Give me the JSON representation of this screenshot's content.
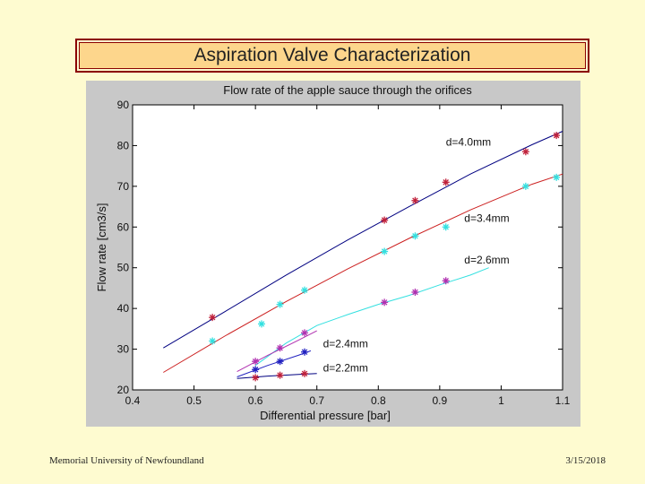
{
  "slide": {
    "title": "Aspiration Valve Characterization",
    "footer_left": "Memorial University of Newfoundland",
    "footer_right": "3/15/2018"
  },
  "chart_data": {
    "type": "scatter",
    "title": "Flow rate of the apple sauce through the orifices",
    "xlabel": "Differential pressure [bar]",
    "ylabel": "Flow rate [cm3/s]",
    "xlim": [
      0.4,
      1.1
    ],
    "ylim": [
      20,
      90
    ],
    "xticks": [
      0.4,
      0.5,
      0.6,
      0.7,
      0.8,
      0.9,
      1,
      1.1
    ],
    "xtick_labels": [
      "0.4",
      "0.5",
      "0.6",
      "0.7",
      "0.8",
      "0.9",
      "1",
      "1.1"
    ],
    "yticks": [
      20,
      30,
      40,
      50,
      60,
      70,
      80,
      90
    ],
    "ytick_labels": [
      "20",
      "30",
      "40",
      "50",
      "60",
      "70",
      "80",
      "90"
    ],
    "grid": false,
    "series": [
      {
        "name": "d=4.0mm",
        "marker_color": "#c0203a",
        "line_color": "#000080",
        "points": [
          [
            0.53,
            37.8
          ],
          [
            0.81,
            61.7
          ],
          [
            0.86,
            66.5
          ],
          [
            0.91,
            71.0
          ],
          [
            1.04,
            78.5
          ],
          [
            1.09,
            82.5
          ]
        ],
        "fit": [
          [
            0.45,
            30.3
          ],
          [
            0.55,
            39.2
          ],
          [
            0.65,
            48.2
          ],
          [
            0.75,
            56.8
          ],
          [
            0.85,
            65.0
          ],
          [
            0.95,
            73.0
          ],
          [
            1.05,
            80.2
          ],
          [
            1.1,
            83.5
          ]
        ]
      },
      {
        "name": "d=3.4mm",
        "marker_color": "#33e0e0",
        "line_color": "#cc2020",
        "points": [
          [
            0.53,
            32.0
          ],
          [
            0.61,
            36.2
          ],
          [
            0.64,
            41.0
          ],
          [
            0.68,
            44.5
          ],
          [
            0.81,
            54.0
          ],
          [
            0.86,
            57.8
          ],
          [
            0.91,
            60.0
          ],
          [
            1.04,
            70.0
          ],
          [
            1.09,
            72.2
          ]
        ],
        "fit": [
          [
            0.45,
            24.3
          ],
          [
            0.55,
            33.2
          ],
          [
            0.65,
            41.7
          ],
          [
            0.75,
            49.7
          ],
          [
            0.85,
            57.2
          ],
          [
            0.95,
            64.2
          ],
          [
            1.05,
            70.5
          ],
          [
            1.1,
            73.0
          ]
        ]
      },
      {
        "name": "d=2.6mm",
        "marker_color": "#b030b0",
        "line_color": "#33e0e0",
        "points": [
          [
            0.81,
            41.5
          ],
          [
            0.86,
            44.0
          ],
          [
            0.91,
            46.8
          ]
        ],
        "fit": [
          [
            0.6,
            26.0
          ],
          [
            0.65,
            31.5
          ],
          [
            0.7,
            35.8
          ],
          [
            0.75,
            38.5
          ],
          [
            0.8,
            41.0
          ],
          [
            0.85,
            43.2
          ],
          [
            0.9,
            45.8
          ],
          [
            0.95,
            48.2
          ],
          [
            0.98,
            50.0
          ]
        ]
      },
      {
        "name": "d=2.4mm",
        "marker_color": "#b030b0",
        "line_color": "#b030b0",
        "points": [
          [
            0.6,
            27.0
          ],
          [
            0.64,
            30.3
          ],
          [
            0.68,
            34.0
          ]
        ],
        "fit": [
          [
            0.57,
            24.5
          ],
          [
            0.62,
            28.5
          ],
          [
            0.67,
            32.2
          ],
          [
            0.7,
            34.5
          ]
        ]
      },
      {
        "name": "d=2.4mm",
        "marker_color": "#2020c0",
        "line_color": "#2020c0",
        "points": [
          [
            0.6,
            25.0
          ],
          [
            0.64,
            27.0
          ],
          [
            0.68,
            29.3
          ]
        ],
        "fit": [
          [
            0.57,
            23.2
          ],
          [
            0.62,
            26.0
          ],
          [
            0.67,
            28.5
          ],
          [
            0.69,
            29.6
          ]
        ]
      },
      {
        "name": "d=2.2mm",
        "marker_color": "#c0203a",
        "line_color": "#000080",
        "points": [
          [
            0.6,
            23.0
          ],
          [
            0.64,
            23.6
          ],
          [
            0.68,
            24.0
          ]
        ],
        "fit": [
          [
            0.57,
            22.8
          ],
          [
            0.62,
            23.4
          ],
          [
            0.67,
            23.8
          ],
          [
            0.7,
            24.0
          ]
        ]
      }
    ],
    "annotations": [
      {
        "text": "d=4.0mm",
        "x": 0.91,
        "y": 80.0
      },
      {
        "text": "d=3.4mm",
        "x": 0.94,
        "y": 61.3
      },
      {
        "text": "d=2.6mm",
        "x": 0.94,
        "y": 51.0
      },
      {
        "text": "d=2.4mm",
        "x": 0.71,
        "y": 30.5
      },
      {
        "text": "d=2.2mm",
        "x": 0.71,
        "y": 24.5
      }
    ]
  }
}
